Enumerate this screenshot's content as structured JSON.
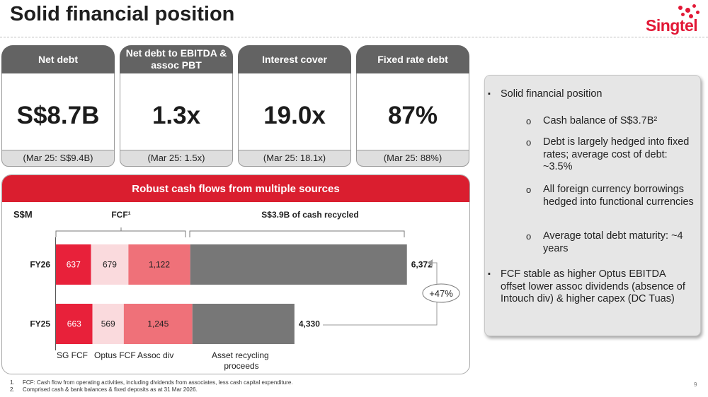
{
  "title": "Solid financial position",
  "logo": {
    "text": "Singtel"
  },
  "kpis": [
    {
      "label": "Net debt",
      "value": "S$8.7B",
      "compare": "(Mar 25: S$9.4B)"
    },
    {
      "label": "Net debt to EBITDA & assoc PBT",
      "value": "1.3x",
      "compare": "(Mar 25: 1.5x)"
    },
    {
      "label": "Interest cover",
      "value": "19.0x",
      "compare": "(Mar 25: 18.1x)"
    },
    {
      "label": "Fixed rate debt",
      "value": "87%",
      "compare": "(Mar 25: 88%)"
    }
  ],
  "cash_panel": {
    "title": "Robust cash flows from multiple sources"
  },
  "chart_data": {
    "type": "bar",
    "orientation": "horizontal",
    "stacked": true,
    "unit_label": "S$M",
    "categories": [
      "FY26",
      "FY25"
    ],
    "series": [
      {
        "name": "SG FCF",
        "values": [
          637,
          663
        ],
        "color": "#e8213a"
      },
      {
        "name": "Optus FCF",
        "values": [
          679,
          569
        ],
        "color": "#fadadd"
      },
      {
        "name": "Assoc div",
        "values": [
          1122,
          1245
        ],
        "color": "#ef7179"
      },
      {
        "name": "Asset recycling proceeds",
        "values": [
          3934,
          1853
        ],
        "color": "#777777"
      }
    ],
    "value_labels": [
      [
        "637",
        "679",
        "1,122",
        ""
      ],
      [
        "663",
        "569",
        "1,245",
        ""
      ]
    ],
    "totals": [
      "6,372",
      "4,330"
    ],
    "groups": {
      "fcf": "FCF¹",
      "recycled": "S$3.9B of cash recycled"
    },
    "growth_label": "+47%",
    "legend_labels": [
      "SG FCF",
      "Optus FCF",
      "Assoc div",
      "Asset recycling proceeds"
    ]
  },
  "bullets": [
    {
      "level": 1,
      "text": "Solid financial position"
    },
    {
      "level": 2,
      "text": "Cash balance of S$3.7B²"
    },
    {
      "level": 2,
      "text": "Debt is largely hedged into fixed rates; average cost of debt: ~3.5%"
    },
    {
      "level": 2,
      "text": "All foreign currency borrowings hedged into functional currencies"
    },
    {
      "level": 2,
      "text": "Average total debt maturity: ~4 years"
    },
    {
      "level": 1,
      "text": "FCF stable as higher Optus EBITDA offset lower assoc dividends (absence of Intouch div) & higher capex (DC Tuas)"
    }
  ],
  "bullet_markers": {
    "level1": "▪",
    "level2": "o"
  },
  "footnotes": [
    {
      "num": "1.",
      "text": "FCF: Cash flow from operating activities, including dividends from associates, less cash capital expenditure."
    },
    {
      "num": "2.",
      "text": "Comprised cash & bank balances & fixed deposits as at 31 Mar 2026."
    }
  ],
  "page_number": "9"
}
